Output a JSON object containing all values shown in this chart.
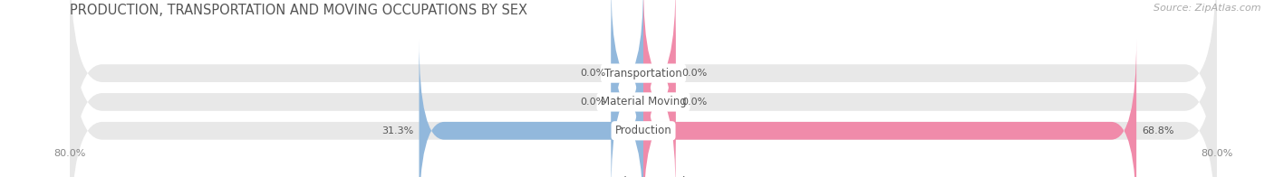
{
  "title": "PRODUCTION, TRANSPORTATION AND MOVING OCCUPATIONS BY SEX",
  "source": "Source: ZipAtlas.com",
  "categories": [
    "Transportation",
    "Material Moving",
    "Production"
  ],
  "male_values": [
    0.0,
    0.0,
    31.3
  ],
  "female_values": [
    0.0,
    0.0,
    68.8
  ],
  "xlim": 80.0,
  "male_color": "#92b8dc",
  "female_color": "#f08baa",
  "bar_bg_color": "#e8e8e8",
  "bg_color": "#ffffff",
  "label_color": "#555555",
  "tick_color": "#888888",
  "title_color": "#555555",
  "source_color": "#aaaaaa",
  "title_fontsize": 10.5,
  "source_fontsize": 8,
  "bar_height": 0.62,
  "bar_gap": 0.15,
  "min_bar_width": 4.5,
  "figsize": [
    14.06,
    1.96
  ],
  "dpi": 100
}
